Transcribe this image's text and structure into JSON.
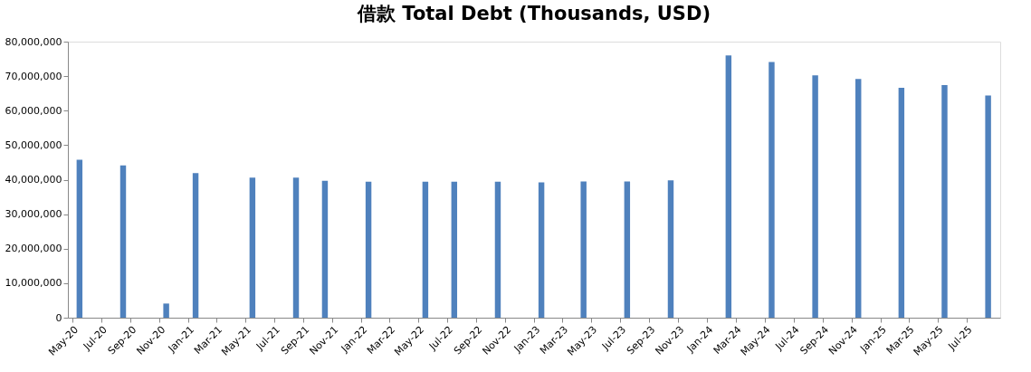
{
  "chart_data": {
    "type": "bar",
    "title": "借款 Total Debt (Thousands, USD)",
    "x": [
      "2020-05-16",
      "2020-08-16",
      "2020-11-15",
      "2021-01-16",
      "2021-05-16",
      "2021-08-16",
      "2021-10-16",
      "2022-01-16",
      "2022-05-16",
      "2022-07-16",
      "2022-10-16",
      "2023-01-16",
      "2023-04-15",
      "2023-07-16",
      "2023-10-16",
      "2024-02-15",
      "2024-05-16",
      "2024-08-16",
      "2024-11-15",
      "2025-02-14",
      "2025-05-16",
      "2025-08-16"
    ],
    "values": [
      45800000,
      44100000,
      4100000,
      41900000,
      40600000,
      40600000,
      39700000,
      39400000,
      39400000,
      39400000,
      39400000,
      39200000,
      39500000,
      39500000,
      39800000,
      76000000,
      74100000,
      70200000,
      69200000,
      66600000,
      67400000,
      64400000
    ],
    "color": "#4f81bd",
    "xlim": [
      "2020-05",
      "2025-09"
    ],
    "xticks": [
      {
        "value": "2020-05",
        "label": "May-20"
      },
      {
        "value": "2020-07",
        "label": "Jul-20"
      },
      {
        "value": "2020-09",
        "label": "Sep-20"
      },
      {
        "value": "2020-11",
        "label": "Nov-20"
      },
      {
        "value": "2021-01",
        "label": "Jan-21"
      },
      {
        "value": "2021-03",
        "label": "Mar-21"
      },
      {
        "value": "2021-05",
        "label": "May-21"
      },
      {
        "value": "2021-07",
        "label": "Jul-21"
      },
      {
        "value": "2021-09",
        "label": "Sep-21"
      },
      {
        "value": "2021-11",
        "label": "Nov-21"
      },
      {
        "value": "2022-01",
        "label": "Jan-22"
      },
      {
        "value": "2022-03",
        "label": "Mar-22"
      },
      {
        "value": "2022-05",
        "label": "May-22"
      },
      {
        "value": "2022-07",
        "label": "Jul-22"
      },
      {
        "value": "2022-09",
        "label": "Sep-22"
      },
      {
        "value": "2022-11",
        "label": "Nov-22"
      },
      {
        "value": "2023-01",
        "label": "Jan-23"
      },
      {
        "value": "2023-03",
        "label": "Mar-23"
      },
      {
        "value": "2023-05",
        "label": "May-23"
      },
      {
        "value": "2023-07",
        "label": "Jul-23"
      },
      {
        "value": "2023-09",
        "label": "Sep-23"
      },
      {
        "value": "2023-11",
        "label": "Nov-23"
      },
      {
        "value": "2024-01",
        "label": "Jan-24"
      },
      {
        "value": "2024-03",
        "label": "Mar-24"
      },
      {
        "value": "2024-05",
        "label": "May-24"
      },
      {
        "value": "2024-07",
        "label": "Jul-24"
      },
      {
        "value": "2024-09",
        "label": "Sep-24"
      },
      {
        "value": "2024-11",
        "label": "Nov-24"
      },
      {
        "value": "2025-01",
        "label": "Jan-25"
      },
      {
        "value": "2025-03",
        "label": "Mar-25"
      },
      {
        "value": "2025-05",
        "label": "May-25"
      },
      {
        "value": "2025-07",
        "label": "Jul-25"
      }
    ],
    "ylim": [
      0,
      80000000
    ],
    "yticks": [
      {
        "value": 0,
        "label": "0"
      },
      {
        "value": 10000000,
        "label": "10,000,000"
      },
      {
        "value": 20000000,
        "label": "20,000,000"
      },
      {
        "value": 30000000,
        "label": "30,000,000"
      },
      {
        "value": 40000000,
        "label": "40,000,000"
      },
      {
        "value": 50000000,
        "label": "50,000,000"
      },
      {
        "value": 60000000,
        "label": "60,000,000"
      },
      {
        "value": 70000000,
        "label": "70,000,000"
      },
      {
        "value": 80000000,
        "label": "80,000,000"
      }
    ],
    "grid": false
  }
}
